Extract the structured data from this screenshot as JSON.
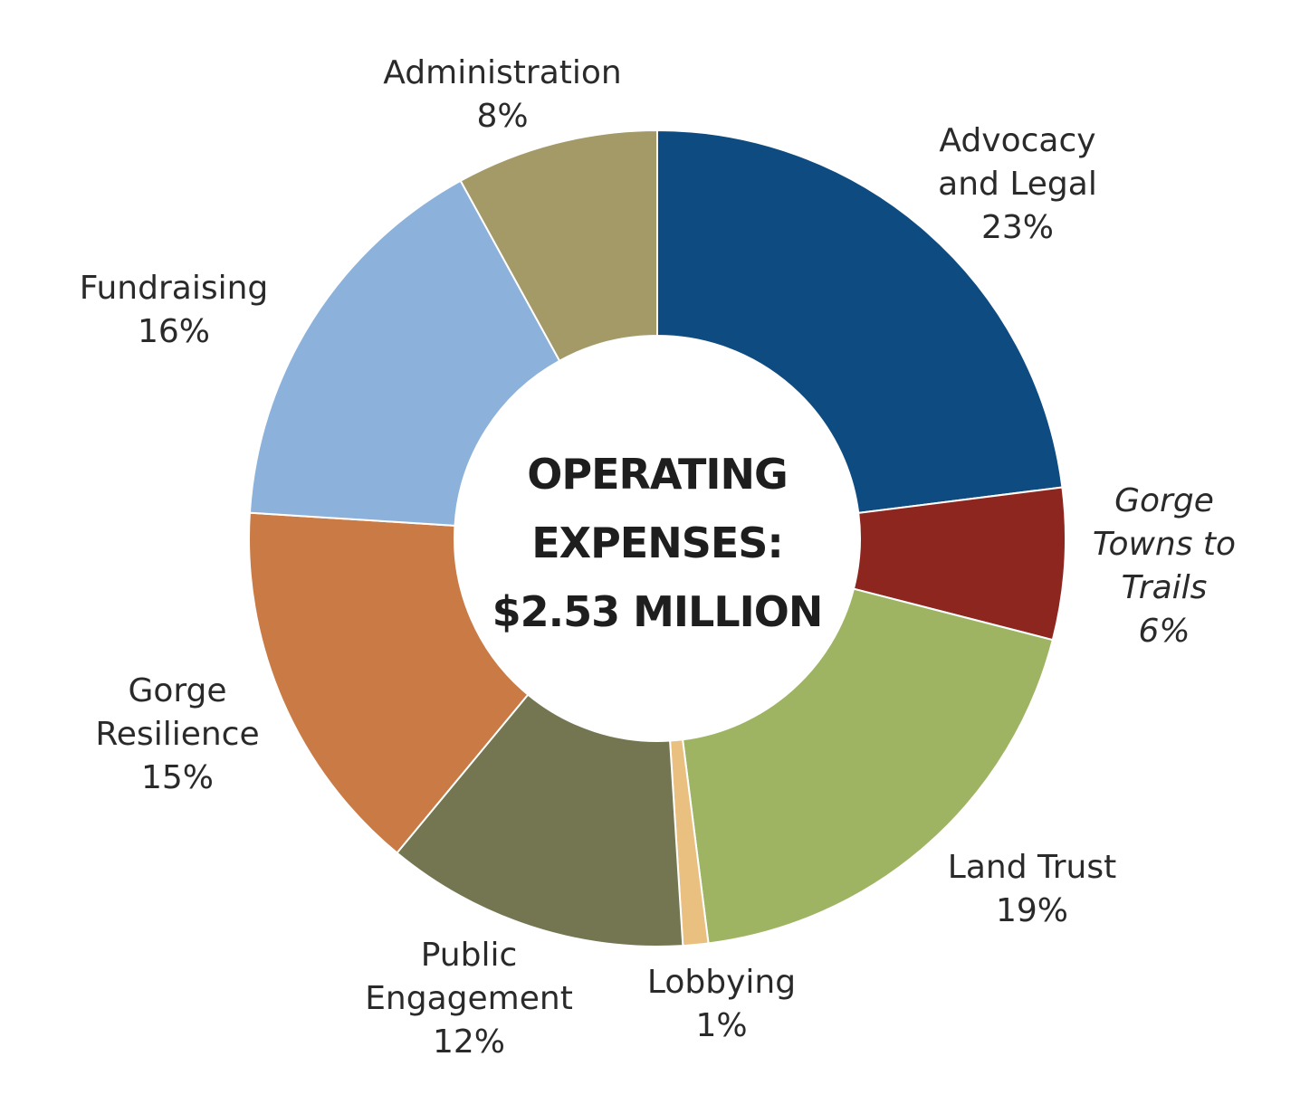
{
  "chart_data": {
    "type": "pie",
    "donut": true,
    "center_title": [
      "OPERATING",
      "EXPENSES:",
      "$2.53 MILLION"
    ],
    "slices": [
      {
        "label_lines": [
          "Advocacy",
          "and Legal"
        ],
        "value": 23,
        "value_label": "23%",
        "color": "#0d4b80",
        "italic": false
      },
      {
        "label_lines": [
          "Gorge",
          "Towns to",
          "Trails"
        ],
        "value": 6,
        "value_label": "6%",
        "color": "#8e2620",
        "italic": true
      },
      {
        "label_lines": [
          "Land Trust"
        ],
        "value": 19,
        "value_label": "19%",
        "color": "#9eb462",
        "italic": false
      },
      {
        "label_lines": [
          "Lobbying"
        ],
        "value": 1,
        "value_label": "1%",
        "color": "#e9c080",
        "italic": false
      },
      {
        "label_lines": [
          "Public",
          "Engagement"
        ],
        "value": 12,
        "value_label": "12%",
        "color": "#737651",
        "italic": false
      },
      {
        "label_lines": [
          "Gorge",
          "Resilience"
        ],
        "value": 15,
        "value_label": "15%",
        "color": "#c97a45",
        "italic": false
      },
      {
        "label_lines": [
          "Fundraising"
        ],
        "value": 16,
        "value_label": "16%",
        "color": "#8cb1da",
        "italic": false
      },
      {
        "label_lines": [
          "Administration"
        ],
        "value": 8,
        "value_label": "8%",
        "color": "#a49a68",
        "italic": false
      }
    ]
  }
}
